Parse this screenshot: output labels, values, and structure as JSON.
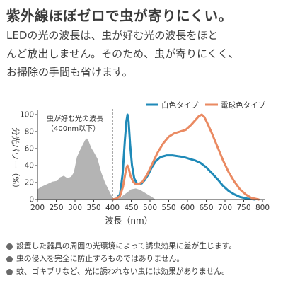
{
  "headline": "紫外線ほぼゼロで虫が寄りにくい。",
  "lead": [
    "LEDの光の波長は、虫が好む光の波長をほと",
    "んど放出しません。そのため、虫が寄りにくく、",
    "お掃除の手間も省けます。"
  ],
  "notes": [
    "設置した器具の周囲の光環境によって誘虫効果に差が生じます。",
    "虫の侵入を完全に防止するものではありません。",
    "蚊、ゴキブリなど、光に誘われない虫には効果がありません。"
  ],
  "chart_data": {
    "type": "area",
    "ylabel": "分光パワー（%）",
    "xlabel": "波長（nm）",
    "xlim": [
      200,
      800
    ],
    "ylim": [
      0,
      100
    ],
    "x_ticks": [
      "200",
      "250",
      "300",
      "350",
      "400",
      "450",
      "500",
      "550",
      "600",
      "650",
      "700",
      "750",
      "800"
    ],
    "y_ticks": [
      "0",
      "20",
      "40",
      "60",
      "80",
      "100"
    ],
    "grid": false,
    "legend_position": "top-right",
    "annotation_lines": [
      "虫が好む光の波長",
      "（400nm以下）"
    ],
    "divider_x": 400,
    "insect_area": {
      "color": "#b4b4b4",
      "points": [
        [
          200,
          12
        ],
        [
          210,
          15
        ],
        [
          225,
          18
        ],
        [
          240,
          21
        ],
        [
          252,
          22
        ],
        [
          260,
          26
        ],
        [
          270,
          28
        ],
        [
          280,
          25
        ],
        [
          290,
          27
        ],
        [
          297,
          32
        ],
        [
          305,
          50
        ],
        [
          312,
          57
        ],
        [
          320,
          64
        ],
        [
          327,
          70
        ],
        [
          332,
          72
        ],
        [
          337,
          68
        ],
        [
          343,
          61
        ],
        [
          350,
          56
        ],
        [
          360,
          48
        ],
        [
          370,
          32
        ],
        [
          380,
          20
        ],
        [
          390,
          11
        ],
        [
          398,
          4
        ],
        [
          400,
          0
        ],
        [
          405,
          0
        ],
        [
          420,
          2
        ],
        [
          435,
          7
        ],
        [
          450,
          12
        ],
        [
          462,
          13
        ],
        [
          475,
          11
        ],
        [
          490,
          7
        ],
        [
          505,
          3
        ],
        [
          515,
          0
        ]
      ]
    },
    "series": [
      {
        "name": "白色タイプ",
        "color": "#1f8ab8",
        "points": [
          [
            400,
            0
          ],
          [
            410,
            1
          ],
          [
            420,
            6
          ],
          [
            427,
            30
          ],
          [
            433,
            70
          ],
          [
            437,
            92
          ],
          [
            440,
            100
          ],
          [
            443,
            92
          ],
          [
            447,
            65
          ],
          [
            452,
            40
          ],
          [
            458,
            25
          ],
          [
            465,
            19
          ],
          [
            470,
            18
          ],
          [
            478,
            19
          ],
          [
            486,
            23
          ],
          [
            495,
            29
          ],
          [
            505,
            38
          ],
          [
            515,
            45
          ],
          [
            528,
            50
          ],
          [
            545,
            52
          ],
          [
            560,
            52
          ],
          [
            575,
            51
          ],
          [
            590,
            50
          ],
          [
            605,
            48
          ],
          [
            620,
            46
          ],
          [
            635,
            43
          ],
          [
            650,
            38
          ],
          [
            665,
            31
          ],
          [
            680,
            24
          ],
          [
            695,
            16
          ],
          [
            710,
            10
          ],
          [
            725,
            6
          ],
          [
            740,
            3
          ],
          [
            760,
            1
          ],
          [
            780,
            0
          ]
        ]
      },
      {
        "name": "電球色タイプ",
        "color": "#ea8a62",
        "points": [
          [
            400,
            0
          ],
          [
            410,
            1
          ],
          [
            420,
            4
          ],
          [
            428,
            15
          ],
          [
            434,
            30
          ],
          [
            437,
            37
          ],
          [
            440,
            40
          ],
          [
            443,
            37
          ],
          [
            448,
            28
          ],
          [
            455,
            21
          ],
          [
            462,
            18
          ],
          [
            470,
            18
          ],
          [
            480,
            21
          ],
          [
            492,
            29
          ],
          [
            505,
            41
          ],
          [
            520,
            55
          ],
          [
            535,
            66
          ],
          [
            550,
            74
          ],
          [
            565,
            78
          ],
          [
            580,
            80
          ],
          [
            595,
            82
          ],
          [
            610,
            88
          ],
          [
            620,
            93
          ],
          [
            630,
            98
          ],
          [
            638,
            100
          ],
          [
            645,
            97
          ],
          [
            655,
            88
          ],
          [
            665,
            78
          ],
          [
            680,
            62
          ],
          [
            695,
            46
          ],
          [
            710,
            32
          ],
          [
            725,
            21
          ],
          [
            740,
            12
          ],
          [
            755,
            6
          ],
          [
            770,
            2
          ],
          [
            790,
            0
          ]
        ]
      }
    ]
  }
}
